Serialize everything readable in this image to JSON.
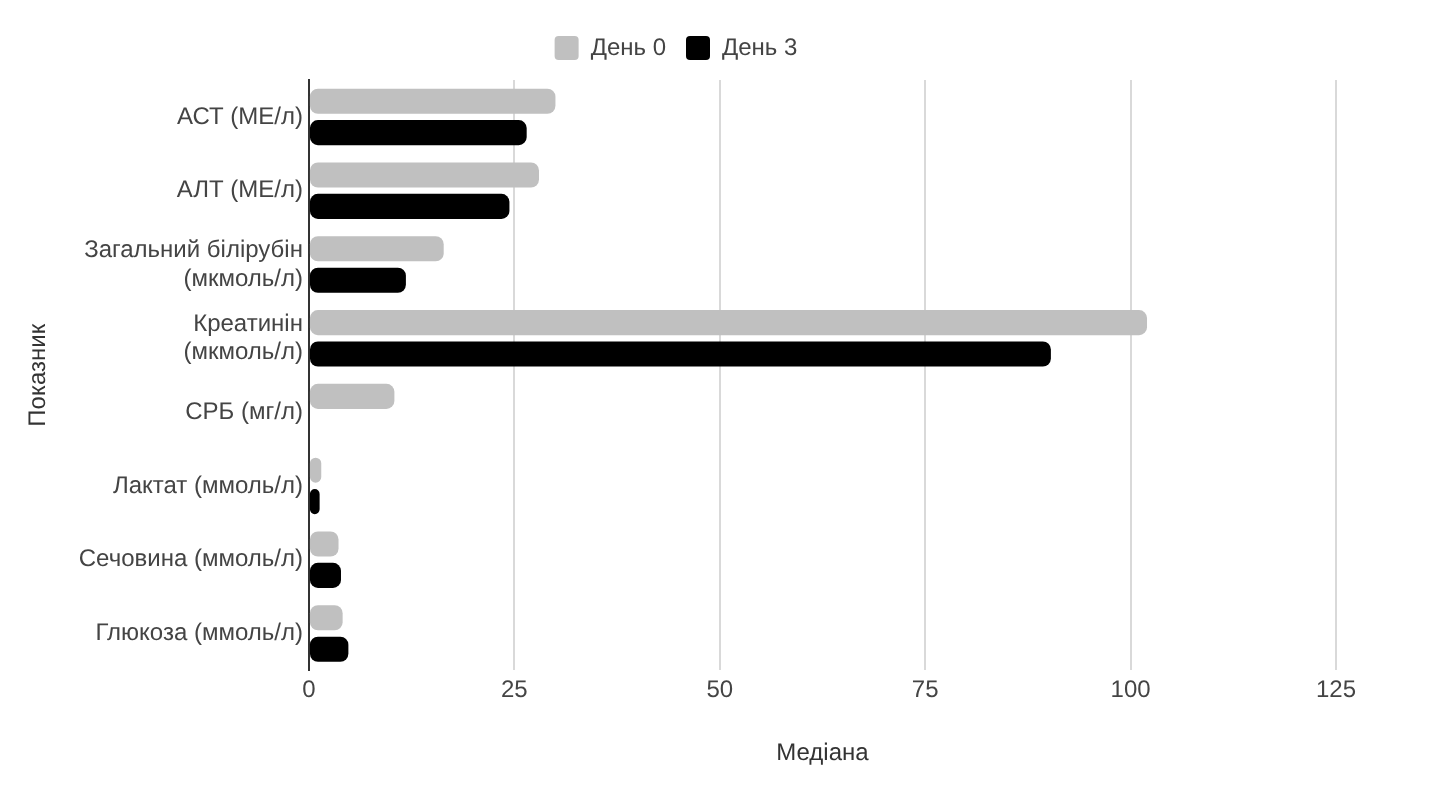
{
  "chart_data": {
    "type": "bar",
    "orientation": "horizontal",
    "xlabel": "Медіана",
    "ylabel": "Показник",
    "categories": [
      "АСТ (МЕ/л)",
      "АЛТ (МЕ/л)",
      "Загальний білірубін (мкмоль/л)",
      "Креатинін (мкмоль/л)",
      "СРБ (мг/л)",
      "Лактат (ммоль/л)",
      "Сечовина (ммоль/л)",
      "Глюкоза (ммоль/л)"
    ],
    "series": [
      {
        "name": "День 0",
        "color": "#c0c0c0",
        "values": [
          30,
          28,
          16.4,
          102,
          10.4,
          1.5,
          3.6,
          4.1
        ]
      },
      {
        "name": "День 3",
        "color": "#000000",
        "values": [
          26.5,
          24.4,
          11.8,
          90.3,
          null,
          1.3,
          3.9,
          4.8
        ]
      }
    ],
    "xlim": [
      0,
      125
    ],
    "xticks": [
      0,
      25,
      50,
      75,
      100,
      125
    ],
    "grid": "x",
    "legend": "top"
  }
}
